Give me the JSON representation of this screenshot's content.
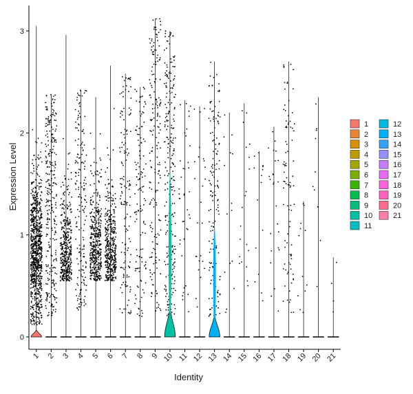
{
  "chart_data": {
    "type": "violin",
    "title": "",
    "xlabel": "Identity",
    "ylabel": "Expression Level",
    "ylim": [
      -0.1,
      3.2
    ],
    "yticks": [
      0,
      1,
      2,
      3
    ],
    "grid": false,
    "legend_position": "right",
    "categories": [
      "1",
      "2",
      "3",
      "4",
      "5",
      "6",
      "7",
      "8",
      "9",
      "10",
      "11",
      "12",
      "13",
      "14",
      "15",
      "16",
      "17",
      "18",
      "19",
      "20",
      "21"
    ],
    "colors": [
      "#F8766D",
      "#EA8331",
      "#D89000",
      "#C09B00",
      "#A3A500",
      "#7CAE00",
      "#39B600",
      "#00BB4E",
      "#00BF7D",
      "#00C1A3",
      "#00BFC4",
      "#00BAE0",
      "#00B0F6",
      "#35A2FF",
      "#9590FF",
      "#C77CFF",
      "#E76BF3",
      "#FA62DB",
      "#FF62BC",
      "#FF6C91",
      "#FF7DA8"
    ],
    "max_values": [
      3.05,
      2.38,
      2.96,
      2.42,
      2.35,
      2.66,
      2.58,
      2.45,
      3.12,
      3.0,
      2.32,
      2.26,
      2.7,
      2.2,
      2.29,
      1.82,
      2.06,
      2.7,
      1.33,
      2.35,
      0.78
    ],
    "cells_expressing": [
      900,
      300,
      420,
      190,
      420,
      430,
      150,
      130,
      190,
      270,
      40,
      25,
      150,
      15,
      20,
      15,
      25,
      90,
      12,
      10,
      4
    ],
    "zero_violin_height": [
      0.07,
      0,
      0,
      0,
      0,
      0,
      0,
      0,
      0,
      0.3,
      0,
      0,
      0.23,
      0,
      0,
      0,
      0,
      0,
      0,
      0,
      0
    ],
    "expressed_violin": {
      "10": [
        0.05,
        1.6
      ],
      "13": [
        0.05,
        1.1
      ]
    }
  }
}
